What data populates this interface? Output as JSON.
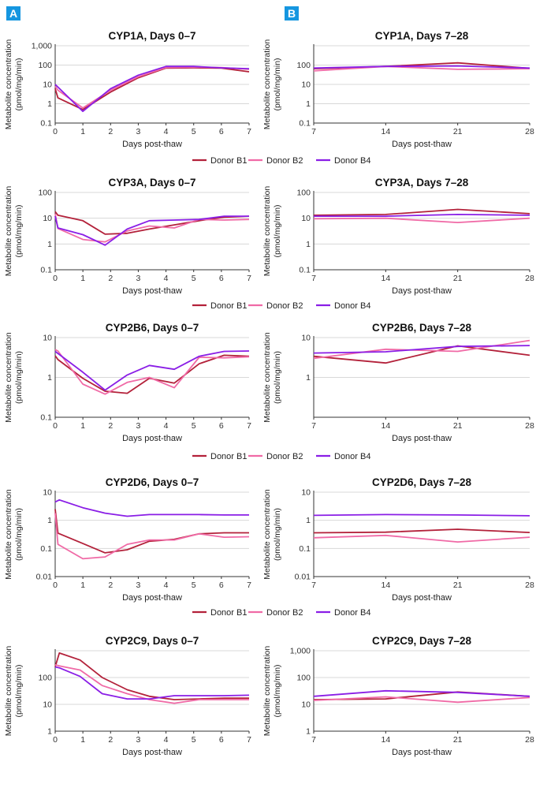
{
  "panels": {
    "left_label": "A",
    "right_label": "B"
  },
  "colors": {
    "Donor B1": "#b3213a",
    "Donor B2": "#f06aa6",
    "Donor B4": "#8a1ee6",
    "grid": "#d8d8d8",
    "axis": "#333333"
  },
  "chart_data": [
    {
      "type": "line",
      "title": "CYP1A, Days 0–7",
      "xlabel": "Days post-thaw",
      "ylabel": "Metabolite concentration",
      "ylabel2": "(pmol/mg/min)",
      "yscale": "log",
      "ylim": [
        0.1,
        1000
      ],
      "yticks": [
        "0.1",
        "1",
        "10",
        "100",
        "1,000"
      ],
      "xlim": [
        0,
        7
      ],
      "xticks": [
        "0",
        "1",
        "2",
        "3",
        "4",
        "5",
        "6",
        "7"
      ],
      "grid": true,
      "series": [
        {
          "name": "Donor B1",
          "x": [
            0,
            0.1,
            1,
            2,
            3,
            4,
            5,
            6,
            7
          ],
          "y": [
            6,
            2,
            0.5,
            4,
            22,
            70,
            72,
            70,
            45
          ]
        },
        {
          "name": "Donor B2",
          "x": [
            0,
            0.1,
            1,
            2,
            3,
            4,
            5,
            6,
            7
          ],
          "y": [
            8,
            5,
            0.6,
            5,
            25,
            75,
            78,
            75,
            60
          ]
        },
        {
          "name": "Donor B4",
          "x": [
            0,
            1,
            2,
            3,
            4,
            5,
            6,
            7
          ],
          "y": [
            10,
            0.4,
            6,
            30,
            85,
            85,
            72,
            65
          ]
        }
      ]
    },
    {
      "type": "line",
      "title": "CYP1A, Days 7–28",
      "xlabel": "Days post-thaw",
      "ylabel": "Metabolite concentration",
      "ylabel2": "(pmol/mg/min)",
      "yscale": "log",
      "ylim": [
        0.1,
        1000
      ],
      "yticks": [
        "0.1",
        "1",
        "10",
        "100",
        ""
      ],
      "xlim": [
        7,
        28
      ],
      "xticks": [
        "7",
        "14",
        "21",
        "28"
      ],
      "grid": true,
      "series": [
        {
          "name": "Donor B1",
          "x": [
            7,
            14,
            21,
            28
          ],
          "y": [
            65,
            85,
            130,
            68
          ]
        },
        {
          "name": "Donor B2",
          "x": [
            7,
            14,
            21,
            28
          ],
          "y": [
            50,
            85,
            60,
            65
          ]
        },
        {
          "name": "Donor B4",
          "x": [
            7,
            14,
            21,
            28
          ],
          "y": [
            70,
            85,
            90,
            70
          ]
        }
      ]
    },
    {
      "type": "line",
      "title": "CYP3A, Days 0–7",
      "xlabel": "Days post-thaw",
      "ylabel": "Metabolite concentration",
      "ylabel2": "(pmol/mg/min)",
      "yscale": "log",
      "ylim": [
        0.1,
        100
      ],
      "yticks": [
        "0.1",
        "1",
        "10",
        "100"
      ],
      "xlim": [
        0,
        7
      ],
      "xticks": [
        "0",
        "1",
        "2",
        "3",
        "4",
        "5",
        "6",
        "7"
      ],
      "grid": true,
      "series": [
        {
          "name": "Donor B1",
          "x": [
            0,
            0.1,
            1,
            1.8,
            2.6,
            3.4,
            4.3,
            5.2,
            6.1,
            7
          ],
          "y": [
            18,
            13,
            8,
            2.4,
            2.6,
            3.8,
            5.5,
            8,
            11,
            12
          ]
        },
        {
          "name": "Donor B2",
          "x": [
            0,
            0.1,
            1,
            1.8,
            2.6,
            3.4,
            4.3,
            5.2,
            6.1,
            7
          ],
          "y": [
            15,
            4,
            1.5,
            1.2,
            3.2,
            5,
            4.2,
            9,
            8.5,
            9
          ]
        },
        {
          "name": "Donor B4",
          "x": [
            0,
            0.1,
            1,
            1.8,
            2.6,
            3.4,
            4.3,
            5.2,
            6.1,
            7
          ],
          "y": [
            12,
            4.2,
            2.3,
            0.9,
            3.8,
            8,
            8.5,
            9,
            12,
            12
          ]
        }
      ]
    },
    {
      "type": "line",
      "title": "CYP3A, Days 7–28",
      "xlabel": "Days post-thaw",
      "ylabel": "Metabolite concentration",
      "ylabel2": "(pmol/mg/min)",
      "yscale": "log",
      "ylim": [
        0.1,
        100
      ],
      "yticks": [
        "0.1",
        "1",
        "10",
        "100"
      ],
      "xlim": [
        7,
        28
      ],
      "xticks": [
        "7",
        "14",
        "21",
        "28"
      ],
      "grid": true,
      "series": [
        {
          "name": "Donor B1",
          "x": [
            7,
            14,
            21,
            28
          ],
          "y": [
            13,
            14,
            22,
            15
          ]
        },
        {
          "name": "Donor B2",
          "x": [
            7,
            14,
            21,
            28
          ],
          "y": [
            9.5,
            10,
            6.8,
            10
          ]
        },
        {
          "name": "Donor B4",
          "x": [
            7,
            14,
            21,
            28
          ],
          "y": [
            12,
            12,
            14,
            13
          ]
        }
      ]
    },
    {
      "type": "line",
      "title": "CYP2B6, Days 0–7",
      "xlabel": "Days post-thaw",
      "ylabel": "Metabolite concentration",
      "ylabel2": "(pmol/mg/min)",
      "yscale": "log",
      "ylim": [
        0.1,
        10
      ],
      "yticks": [
        "0.1",
        "1",
        "10"
      ],
      "xlim": [
        0,
        7
      ],
      "xticks": [
        "0",
        "1",
        "2",
        "3",
        "4",
        "5",
        "6",
        "7"
      ],
      "grid": true,
      "series": [
        {
          "name": "Donor B1",
          "x": [
            0,
            0.1,
            1,
            1.8,
            2.6,
            3.4,
            4.3,
            5.2,
            6.1,
            7
          ],
          "y": [
            3.5,
            2.8,
            0.95,
            0.45,
            0.4,
            0.95,
            0.72,
            2.2,
            3.6,
            3.4
          ]
        },
        {
          "name": "Donor B2",
          "x": [
            0,
            0.1,
            1,
            1.8,
            2.6,
            3.4,
            4.3,
            5.2,
            6.1,
            7
          ],
          "y": [
            5,
            4.6,
            0.68,
            0.38,
            0.75,
            1.0,
            0.55,
            3.2,
            3.1,
            3.3
          ]
        },
        {
          "name": "Donor B4",
          "x": [
            0,
            0.1,
            1,
            1.8,
            2.6,
            3.4,
            4.3,
            5.2,
            6.1,
            7
          ],
          "y": [
            4.5,
            4.0,
            1.35,
            0.48,
            1.15,
            2.0,
            1.6,
            3.4,
            4.5,
            4.6
          ]
        }
      ]
    },
    {
      "type": "line",
      "title": "CYP2B6, Days 7–28",
      "xlabel": "Days post-thaw",
      "ylabel": "Metabolite concentration",
      "ylabel2": "(pmol/mg/min)",
      "yscale": "log",
      "ylim": [
        0.1,
        10
      ],
      "yticks": [
        "",
        "1",
        "10"
      ],
      "xlim": [
        7,
        28
      ],
      "xticks": [
        "7",
        "14",
        "21",
        "28"
      ],
      "grid": true,
      "series": [
        {
          "name": "Donor B1",
          "x": [
            7,
            14,
            21,
            28
          ],
          "y": [
            3.4,
            2.3,
            6.2,
            3.6
          ]
        },
        {
          "name": "Donor B2",
          "x": [
            7,
            14,
            21,
            28
          ],
          "y": [
            3.0,
            5.1,
            4.5,
            8.5
          ]
        },
        {
          "name": "Donor B4",
          "x": [
            7,
            14,
            21,
            28
          ],
          "y": [
            4.1,
            4.4,
            6.0,
            6.3
          ]
        }
      ]
    },
    {
      "type": "line",
      "title": "CYP2D6, Days 0–7",
      "xlabel": "Days post-thaw",
      "ylabel": "Metabolite concentration",
      "ylabel2": "(pmol/mg/min)",
      "yscale": "log",
      "ylim": [
        0.01,
        10
      ],
      "yticks": [
        "0.01",
        "0.1",
        "1",
        "10"
      ],
      "xlim": [
        0,
        7
      ],
      "xticks": [
        "0",
        "1",
        "2",
        "3",
        "4",
        "5",
        "6",
        "7"
      ],
      "grid": true,
      "series": [
        {
          "name": "Donor B1",
          "x": [
            0,
            0.1,
            1,
            1.8,
            2.6,
            3.4,
            4.3,
            5.2,
            6.1,
            7
          ],
          "y": [
            2.5,
            0.35,
            0.15,
            0.07,
            0.09,
            0.18,
            0.21,
            0.33,
            0.36,
            0.36
          ]
        },
        {
          "name": "Donor B2",
          "x": [
            0,
            0.1,
            1,
            1.8,
            2.6,
            3.4,
            4.3,
            5.2,
            6.1,
            7
          ],
          "y": [
            1.8,
            0.14,
            0.043,
            0.05,
            0.14,
            0.2,
            0.2,
            0.33,
            0.25,
            0.26
          ]
        },
        {
          "name": "Donor B4",
          "x": [
            0,
            0.15,
            1,
            1.8,
            2.6,
            3.4,
            4.3,
            5.2,
            6.1,
            7
          ],
          "y": [
            4.5,
            5.3,
            2.8,
            1.8,
            1.4,
            1.6,
            1.6,
            1.6,
            1.55,
            1.55
          ]
        }
      ]
    },
    {
      "type": "line",
      "title": "CYP2D6, Days 7–28",
      "xlabel": "Days post-thaw",
      "ylabel": "Metabolite concentration",
      "ylabel2": "(pmol/mg/min)",
      "yscale": "log",
      "ylim": [
        0.01,
        10
      ],
      "yticks": [
        "0.01",
        "0.1",
        "1",
        "10"
      ],
      "xlim": [
        7,
        28
      ],
      "xticks": [
        "7",
        "14",
        "21",
        "28"
      ],
      "grid": true,
      "series": [
        {
          "name": "Donor B1",
          "x": [
            7,
            14,
            21,
            28
          ],
          "y": [
            0.36,
            0.38,
            0.48,
            0.37
          ]
        },
        {
          "name": "Donor B2",
          "x": [
            7,
            14,
            21,
            28
          ],
          "y": [
            0.24,
            0.29,
            0.17,
            0.25
          ]
        },
        {
          "name": "Donor B4",
          "x": [
            7,
            14,
            21,
            28
          ],
          "y": [
            1.5,
            1.6,
            1.55,
            1.45
          ]
        }
      ]
    },
    {
      "type": "line",
      "title": "CYP2C9, Days 0–7",
      "xlabel": "Days post-thaw",
      "ylabel": "Metabolite concentration",
      "ylabel2": "(pmol/mg/min)",
      "yscale": "log",
      "ylim": [
        1,
        1000
      ],
      "yticks": [
        "1",
        "10",
        "100",
        ""
      ],
      "xlim": [
        0,
        7
      ],
      "xticks": [
        "0",
        "1",
        "2",
        "3",
        "4",
        "5",
        "6",
        "7"
      ],
      "grid": true,
      "series": [
        {
          "name": "Donor B1",
          "x": [
            0,
            0.15,
            0.9,
            1.7,
            2.6,
            3.4,
            4.3,
            5.2,
            6.1,
            7
          ],
          "y": [
            250,
            820,
            450,
            100,
            35,
            20,
            15,
            16,
            17,
            17
          ]
        },
        {
          "name": "Donor B2",
          "x": [
            0,
            0.15,
            0.9,
            1.7,
            2.6,
            3.4,
            4.3,
            5.2,
            6.1,
            7
          ],
          "y": [
            300,
            270,
            190,
            50,
            25,
            15,
            11,
            15,
            15,
            15
          ]
        },
        {
          "name": "Donor B4",
          "x": [
            0,
            0.15,
            0.9,
            1.7,
            2.6,
            3.4,
            4.3,
            5.2,
            6.1,
            7
          ],
          "y": [
            250,
            230,
            110,
            25,
            16,
            16,
            21,
            21,
            21,
            22
          ]
        }
      ]
    },
    {
      "type": "line",
      "title": "CYP2C9, Days 7–28",
      "xlabel": "Days post-thaw",
      "ylabel": "Metabolite concentration",
      "ylabel2": "(pmol/mg/min)",
      "yscale": "log",
      "ylim": [
        1,
        1000
      ],
      "yticks": [
        "1",
        "10",
        "100",
        "1,000"
      ],
      "xlim": [
        7,
        28
      ],
      "xticks": [
        "7",
        "14",
        "21",
        "28"
      ],
      "grid": true,
      "series": [
        {
          "name": "Donor B1",
          "x": [
            7,
            14,
            21,
            28
          ],
          "y": [
            15,
            16,
            29,
            20
          ]
        },
        {
          "name": "Donor B2",
          "x": [
            7,
            14,
            21,
            28
          ],
          "y": [
            14,
            19,
            12,
            18
          ]
        },
        {
          "name": "Donor B4",
          "x": [
            7,
            14,
            21,
            28
          ],
          "y": [
            20,
            32,
            28,
            20
          ]
        }
      ]
    }
  ],
  "legend": [
    "Donor B1",
    "Donor B2",
    "Donor B4"
  ]
}
